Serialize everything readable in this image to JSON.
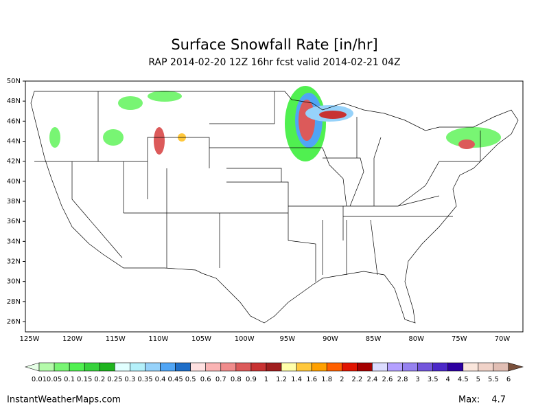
{
  "header": {
    "title": "Surface Snowfall Rate [in/hr]",
    "subtitle": "RAP 2014-02-20 12Z 16hr fcst valid 2014-02-21 04Z"
  },
  "map": {
    "lat_labels": [
      "50N",
      "48N",
      "46N",
      "44N",
      "42N",
      "40N",
      "38N",
      "36N",
      "34N",
      "32N",
      "30N",
      "28N",
      "26N"
    ],
    "lon_labels": [
      "125W",
      "120W",
      "115W",
      "110W",
      "105W",
      "100W",
      "95W",
      "90W",
      "85W",
      "80W",
      "75W",
      "70W"
    ]
  },
  "colorbar": {
    "labels": [
      "0.01",
      "0.05",
      "0.1",
      "0.15",
      "0.2",
      "0.25",
      "0.3",
      "0.35",
      "0.4",
      "0.45",
      "0.5",
      "0.6",
      "0.7",
      "0.8",
      "0.9",
      "1",
      "1.2",
      "1.4",
      "1.6",
      "1.8",
      "2",
      "2.2",
      "2.4",
      "2.6",
      "2.8",
      "3",
      "3.5",
      "4",
      "4.5",
      "5",
      "5.5",
      "6"
    ],
    "colors": [
      "#e6ffe6",
      "#b4faaa",
      "#78f573",
      "#50f050",
      "#37d23c",
      "#1eb41e",
      "#e1ffff",
      "#b4f0fa",
      "#96d2fa",
      "#50a5f5",
      "#1e6ec8",
      "#ffe1e1",
      "#fab4b4",
      "#f08c8c",
      "#dc5a5a",
      "#c83232",
      "#a01e1e",
      "#ffffaa",
      "#ffc83c",
      "#ffa000",
      "#ff6000",
      "#e11400",
      "#a50000",
      "#dcdcff",
      "#b4a0ff",
      "#9682f0",
      "#7356dc",
      "#4b28c8",
      "#2d00a0",
      "#fae6dc",
      "#f0d2c8",
      "#e1beb4",
      "#c8a096",
      "#b48c82",
      "#a07868",
      "#8c6450",
      "#7a503c"
    ]
  },
  "footer": {
    "site": "InstantWeatherMaps.com",
    "max_label": "Max:",
    "max_value": "4.7"
  }
}
